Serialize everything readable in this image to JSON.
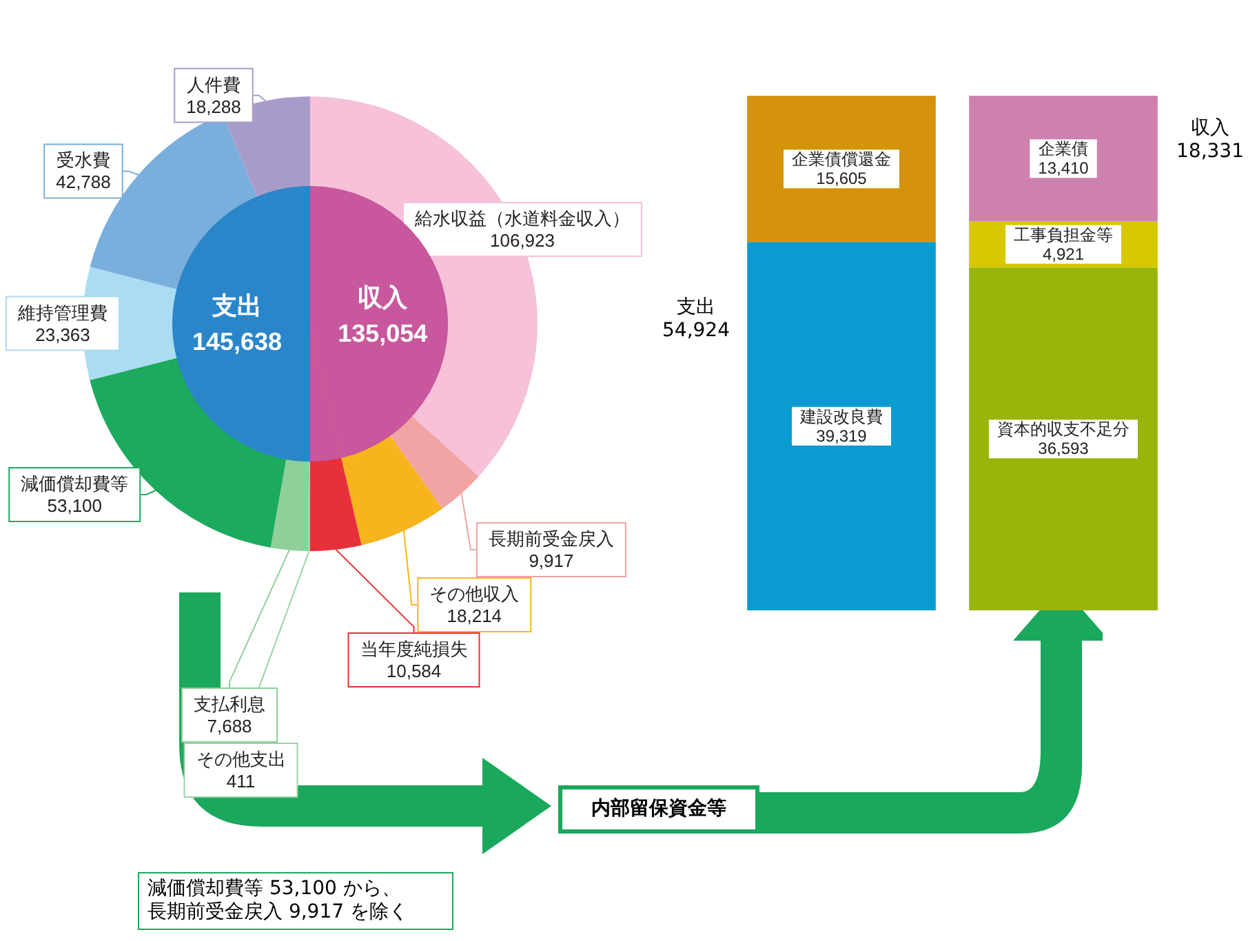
{
  "chart_data": [
    {
      "type": "pie",
      "categories": [
        "給水収益（水道料金収入）",
        "長期前受金戻入",
        "その他収入",
        "当年度純損失",
        "その他支出",
        "支払利息",
        "減価償却費等",
        "維持管理費",
        "受水費",
        "人件費"
      ],
      "values": [
        106923,
        9917,
        18214,
        10584,
        411,
        7688,
        53100,
        23363,
        42788,
        18288
      ],
      "value_labels": [
        "106,923",
        "9,917",
        "18,214",
        "10,584",
        "411",
        "7,688",
        "53,100",
        "23,363",
        "42,788",
        "18,288"
      ],
      "colors": [
        "#f6c1d9",
        "#f2a3a3",
        "#f8b41c",
        "#e6303a",
        "#9ad3a6",
        "#8fcf9a",
        "#1caa5f",
        "#aadcf2",
        "#7aaedd",
        "#a99bc9"
      ]
    },
    {
      "type": "pie",
      "categories": [
        "収入",
        null,
        "支出"
      ],
      "values": [
        135054,
        10584,
        145638
      ],
      "value_labels": [
        "135,054",
        null,
        "145,638"
      ],
      "colors": [
        "#c8579d",
        "#c8579d",
        "#2a86c9"
      ]
    },
    {
      "type": "bar",
      "stacked": true,
      "categories": [
        null,
        null
      ],
      "tick_labels": false,
      "series": [
        {
          "name": "建設改良費",
          "color": "#0a9bd0",
          "values": [
            39319,
            null
          ],
          "value_labels": [
            "39,319",
            null
          ]
        },
        {
          "name": "企業債償還金",
          "color": "#d4930b",
          "values": [
            15605,
            null
          ],
          "value_labels": [
            "15,605",
            null
          ]
        },
        {
          "name": "資本的収支不足分",
          "color": "#9ab50a",
          "values": [
            null,
            36593
          ],
          "value_labels": [
            null,
            "36,593"
          ]
        },
        {
          "name": "工事負担金等",
          "color": "#d8c800",
          "values": [
            null,
            4921
          ],
          "value_labels": [
            null,
            "4,921"
          ]
        },
        {
          "name": "企業債",
          "color": "#cf81ad",
          "values": [
            null,
            13410
          ],
          "value_labels": [
            null,
            "13,410"
          ]
        }
      ],
      "annotations": [
        "支出\n54,924",
        "収入\n18,331",
        "内部留保資金等",
        "減価償却費等 53,100 から、長期前受金戻入 9,917 を除く"
      ]
    }
  ]
}
